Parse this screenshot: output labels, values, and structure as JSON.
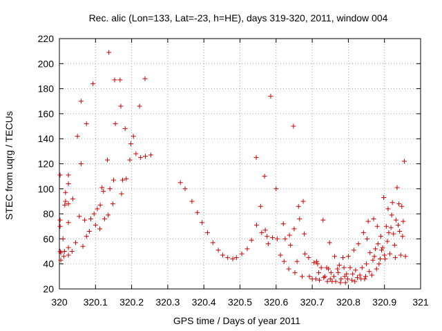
{
  "chart_data": {
    "type": "scatter",
    "title": "Rec. alic (Lon=133, Lat=-23, h=HE), days 319-320, 2011, window 004",
    "xlabel": "GPS time / Days of year 2011",
    "ylabel": "STEC from uqrg / TECUs",
    "xlim": [
      320,
      321
    ],
    "ylim": [
      20,
      220
    ],
    "x_ticks": [
      "320",
      "320.1",
      "320.2",
      "320.3",
      "320.4",
      "320.5",
      "320.6",
      "320.7",
      "320.8",
      "320.9",
      "321"
    ],
    "y_ticks": [
      "20",
      "40",
      "60",
      "80",
      "100",
      "120",
      "140",
      "160",
      "180",
      "200",
      "220"
    ],
    "grid": true,
    "marker": "plus",
    "color": "#cc0000",
    "series": [
      {
        "name": "STEC",
        "points": [
          [
            320.002,
            111
          ],
          [
            320.002,
            75
          ],
          [
            320.002,
            70
          ],
          [
            320.002,
            50
          ],
          [
            320.004,
            49
          ],
          [
            320.004,
            43
          ],
          [
            320.01,
            60
          ],
          [
            320.012,
            46
          ],
          [
            320.014,
            50
          ],
          [
            320.015,
            87
          ],
          [
            320.017,
            90
          ],
          [
            320.017,
            97
          ],
          [
            320.025,
            111
          ],
          [
            320.025,
            104
          ],
          [
            320.025,
            88
          ],
          [
            320.025,
            73
          ],
          [
            320.025,
            53
          ],
          [
            320.025,
            47
          ],
          [
            320.035,
            50
          ],
          [
            320.037,
            92
          ],
          [
            320.045,
            57
          ],
          [
            320.05,
            142
          ],
          [
            320.055,
            78
          ],
          [
            320.06,
            120
          ],
          [
            320.06,
            170
          ],
          [
            320.065,
            54
          ],
          [
            320.07,
            75
          ],
          [
            320.075,
            152
          ],
          [
            320.075,
            62
          ],
          [
            320.083,
            66
          ],
          [
            320.087,
            76
          ],
          [
            320.093,
            184
          ],
          [
            320.096,
            80
          ],
          [
            320.1,
            71
          ],
          [
            320.105,
            84
          ],
          [
            320.112,
            68
          ],
          [
            320.113,
            87
          ],
          [
            320.118,
            101
          ],
          [
            320.122,
            98
          ],
          [
            320.125,
            76
          ],
          [
            320.133,
            123
          ],
          [
            320.135,
            79
          ],
          [
            320.137,
            209
          ],
          [
            320.14,
            100
          ],
          [
            320.148,
            88
          ],
          [
            320.15,
            107
          ],
          [
            320.153,
            187
          ],
          [
            320.155,
            152
          ],
          [
            320.168,
            187
          ],
          [
            320.17,
            166
          ],
          [
            320.172,
            96
          ],
          [
            320.175,
            107
          ],
          [
            320.182,
            148
          ],
          [
            320.185,
            108
          ],
          [
            320.195,
            123
          ],
          [
            320.198,
            136
          ],
          [
            320.205,
            142
          ],
          [
            320.212,
            128
          ],
          [
            320.222,
            166
          ],
          [
            320.225,
            125
          ],
          [
            320.237,
            188
          ],
          [
            320.238,
            126
          ],
          [
            320.253,
            127
          ],
          [
            320.335,
            105
          ],
          [
            320.348,
            100
          ],
          [
            320.367,
            90
          ],
          [
            320.382,
            81
          ],
          [
            320.395,
            73
          ],
          [
            320.41,
            65
          ],
          [
            320.425,
            57
          ],
          [
            320.44,
            51
          ],
          [
            320.452,
            47
          ],
          [
            320.466,
            45
          ],
          [
            320.48,
            44
          ],
          [
            320.49,
            45
          ],
          [
            320.505,
            48
          ],
          [
            320.52,
            52
          ],
          [
            320.532,
            59
          ],
          [
            320.545,
            125
          ],
          [
            320.546,
            71
          ],
          [
            320.557,
            86
          ],
          [
            320.56,
            65
          ],
          [
            320.568,
            110
          ],
          [
            320.57,
            67
          ],
          [
            320.575,
            62
          ],
          [
            320.578,
            56
          ],
          [
            320.585,
            174
          ],
          [
            320.59,
            61
          ],
          [
            320.6,
            100
          ],
          [
            320.603,
            60
          ],
          [
            320.612,
            47
          ],
          [
            320.62,
            72
          ],
          [
            320.622,
            42
          ],
          [
            320.625,
            60
          ],
          [
            320.635,
            36
          ],
          [
            320.637,
            63
          ],
          [
            320.64,
            55
          ],
          [
            320.648,
            150
          ],
          [
            320.65,
            68
          ],
          [
            320.652,
            33
          ],
          [
            320.658,
            42
          ],
          [
            320.662,
            86
          ],
          [
            320.665,
            76
          ],
          [
            320.672,
            30
          ],
          [
            320.675,
            90
          ],
          [
            320.678,
            64
          ],
          [
            320.68,
            48
          ],
          [
            320.69,
            45
          ],
          [
            320.692,
            30
          ],
          [
            320.7,
            28
          ],
          [
            320.705,
            41
          ],
          [
            320.71,
            28
          ],
          [
            320.712,
            42
          ],
          [
            320.715,
            40
          ],
          [
            320.718,
            33
          ],
          [
            320.72,
            27
          ],
          [
            320.725,
            37
          ],
          [
            320.73,
            75
          ],
          [
            320.732,
            29
          ],
          [
            320.735,
            30
          ],
          [
            320.74,
            37
          ],
          [
            320.742,
            26
          ],
          [
            320.745,
            36
          ],
          [
            320.748,
            57
          ],
          [
            320.75,
            28
          ],
          [
            320.752,
            33
          ],
          [
            320.755,
            26
          ],
          [
            320.76,
            30
          ],
          [
            320.762,
            46
          ],
          [
            320.765,
            26
          ],
          [
            320.77,
            36
          ],
          [
            320.772,
            33
          ],
          [
            320.775,
            39
          ],
          [
            320.778,
            25
          ],
          [
            320.78,
            28
          ],
          [
            320.785,
            45
          ],
          [
            320.788,
            37
          ],
          [
            320.79,
            30
          ],
          [
            320.792,
            25
          ],
          [
            320.795,
            32
          ],
          [
            320.798,
            28
          ],
          [
            320.8,
            46
          ],
          [
            320.805,
            37
          ],
          [
            320.81,
            27
          ],
          [
            320.812,
            32
          ],
          [
            320.815,
            51
          ],
          [
            320.818,
            26
          ],
          [
            320.82,
            35
          ],
          [
            320.825,
            29
          ],
          [
            320.828,
            56
          ],
          [
            320.832,
            31
          ],
          [
            320.835,
            28
          ],
          [
            320.838,
            37
          ],
          [
            320.842,
            65
          ],
          [
            320.845,
            28
          ],
          [
            320.848,
            30
          ],
          [
            320.85,
            40
          ],
          [
            320.852,
            60
          ],
          [
            320.855,
            74
          ],
          [
            320.858,
            34
          ],
          [
            320.86,
            49
          ],
          [
            320.865,
            31
          ],
          [
            320.868,
            43
          ],
          [
            320.87,
            76
          ],
          [
            320.872,
            46
          ],
          [
            320.875,
            52
          ],
          [
            320.878,
            36
          ],
          [
            320.88,
            70
          ],
          [
            320.882,
            56
          ],
          [
            320.885,
            40
          ],
          [
            320.888,
            44
          ],
          [
            320.89,
            62
          ],
          [
            320.892,
            51
          ],
          [
            320.895,
            53
          ],
          [
            320.898,
            93
          ],
          [
            320.9,
            47
          ],
          [
            320.902,
            44
          ],
          [
            320.905,
            70
          ],
          [
            320.908,
            58
          ],
          [
            320.91,
            84
          ],
          [
            320.912,
            65
          ],
          [
            320.915,
            48
          ],
          [
            320.918,
            69
          ],
          [
            320.92,
            79
          ],
          [
            320.922,
            89
          ],
          [
            320.925,
            64
          ],
          [
            320.928,
            55
          ],
          [
            320.93,
            45
          ],
          [
            320.932,
            75
          ],
          [
            320.935,
            101
          ],
          [
            320.938,
            71
          ],
          [
            320.94,
            88
          ],
          [
            320.942,
            66
          ],
          [
            320.945,
            47
          ],
          [
            320.948,
            86
          ],
          [
            320.95,
            62
          ],
          [
            320.952,
            74
          ],
          [
            320.955,
            122
          ],
          [
            320.958,
            46
          ]
        ]
      }
    ]
  }
}
